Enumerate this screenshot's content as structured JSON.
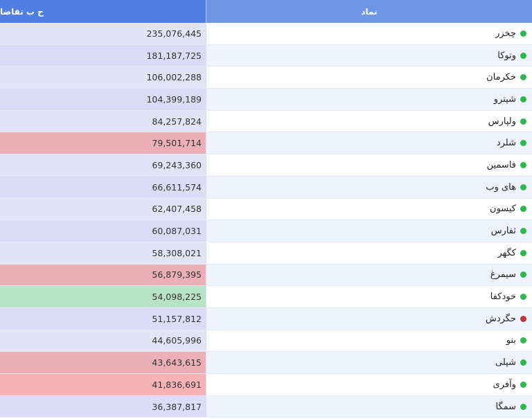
{
  "header": {
    "value_col": "ح ب تقاضا",
    "symbol_col": "نماد"
  },
  "colors": {
    "green_dot": "#2db84a",
    "red_dot": "#c0353b"
  },
  "rows": [
    {
      "symbol": "چخزر",
      "value": "235,076,445",
      "status": "green",
      "bg_val": "#e4e4f8",
      "bg_sym": "#ffffff"
    },
    {
      "symbol": "وتوکا",
      "value": "181,187,725",
      "status": "green",
      "bg_val": "#dcdcf7",
      "bg_sym": "#eef3fd"
    },
    {
      "symbol": "خکرمان",
      "value": "106,002,288",
      "status": "green",
      "bg_val": "#e4e4f8",
      "bg_sym": "#ffffff"
    },
    {
      "symbol": "شپترو",
      "value": "104,399,189",
      "status": "green",
      "bg_val": "#dcdcf7",
      "bg_sym": "#eef3fd"
    },
    {
      "symbol": "ولپارس",
      "value": "84,257,824",
      "status": "green",
      "bg_val": "#e4e4f8",
      "bg_sym": "#ffffff"
    },
    {
      "symbol": "شلرد",
      "value": "79,501,714",
      "status": "green",
      "bg_val": "#ebb0b6",
      "bg_sym": "#eef3fd"
    },
    {
      "symbol": "فاسمین",
      "value": "69,243,360",
      "status": "green",
      "bg_val": "#e4e4f8",
      "bg_sym": "#ffffff"
    },
    {
      "symbol": "های وب",
      "value": "66,611,574",
      "status": "green",
      "bg_val": "#dcdcf7",
      "bg_sym": "#eef3fd"
    },
    {
      "symbol": "کیسون",
      "value": "62,407,458",
      "status": "green",
      "bg_val": "#e4e4f8",
      "bg_sym": "#ffffff"
    },
    {
      "symbol": "ثفارس",
      "value": "60,087,031",
      "status": "green",
      "bg_val": "#dcdcf7",
      "bg_sym": "#eef3fd"
    },
    {
      "symbol": "کگهر",
      "value": "58,308,021",
      "status": "green",
      "bg_val": "#e4e4f8",
      "bg_sym": "#ffffff"
    },
    {
      "symbol": "سیمرغ",
      "value": "56,879,395",
      "status": "green",
      "bg_val": "#ebb0b6",
      "bg_sym": "#eef3fd"
    },
    {
      "symbol": "خودکفا",
      "value": "54,098,225",
      "status": "green",
      "bg_val": "#b8e3c4",
      "bg_sym": "#ffffff"
    },
    {
      "symbol": "حگردش",
      "value": "51,157,812",
      "status": "red",
      "bg_val": "#dcdcf7",
      "bg_sym": "#eef3fd"
    },
    {
      "symbol": "بنو",
      "value": "44,605,996",
      "status": "green",
      "bg_val": "#e4e4f8",
      "bg_sym": "#ffffff"
    },
    {
      "symbol": "شپلی",
      "value": "43,643,615",
      "status": "green",
      "bg_val": "#ebb0b6",
      "bg_sym": "#eef3fd"
    },
    {
      "symbol": "وآفری",
      "value": "41,836,691",
      "status": "green",
      "bg_val": "#f5b3b6",
      "bg_sym": "#ffffff"
    },
    {
      "symbol": "سمگا",
      "value": "36,387,817",
      "status": "green",
      "bg_val": "#dcdcf7",
      "bg_sym": "#eef3fd"
    }
  ]
}
